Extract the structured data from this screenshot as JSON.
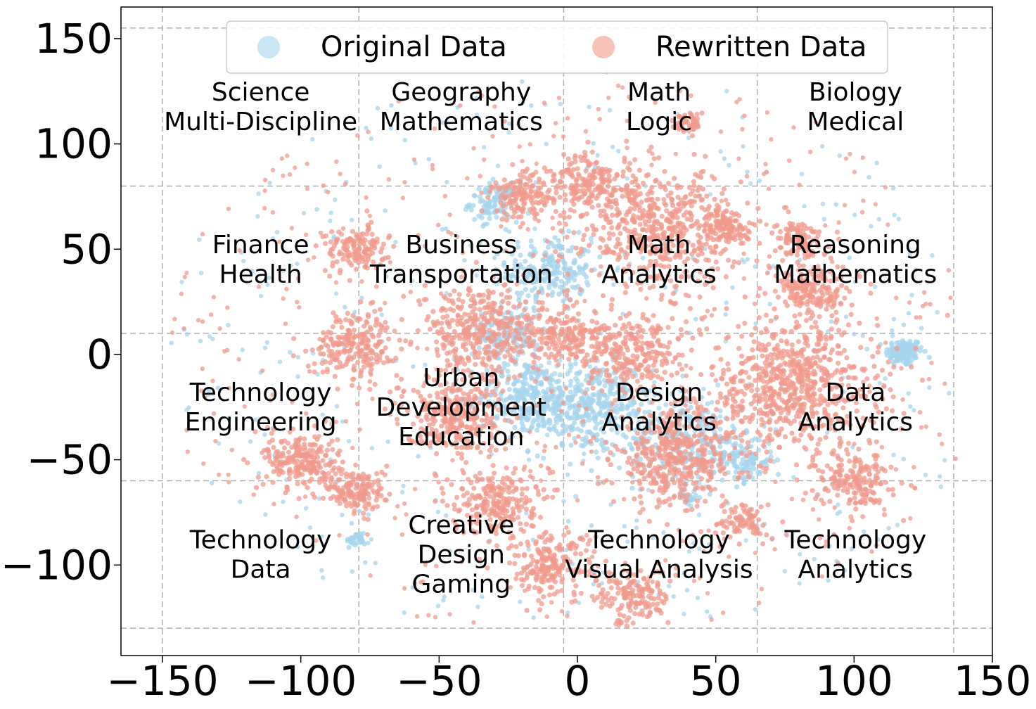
{
  "chart_data": {
    "type": "scatter",
    "title": "",
    "xlabel": "",
    "ylabel": "",
    "xlim": [
      -165,
      150
    ],
    "ylim": [
      -143,
      165
    ],
    "x_ticks": [
      "−150",
      "−100",
      "−50",
      "0",
      "50",
      "100",
      "150"
    ],
    "x_tick_values": [
      -150,
      -100,
      -50,
      0,
      50,
      100,
      150
    ],
    "y_ticks": [
      "150",
      "100",
      "50",
      "0",
      "−50",
      "−100"
    ],
    "y_tick_values": [
      150,
      100,
      50,
      0,
      -50,
      -100
    ],
    "grid": "dashed region grid",
    "grid_x": [
      -150,
      -79,
      -5,
      65,
      136
    ],
    "grid_y": [
      155,
      80,
      10,
      -60,
      -130
    ],
    "legend_placement": "top-center",
    "series": [
      {
        "name": "Original Data",
        "color": "#a6d4ec",
        "clusters": [
          {
            "cx": 118,
            "cy": 1,
            "r": 6,
            "n": 140
          },
          {
            "cx": -10,
            "cy": 40,
            "r": 14,
            "n": 220
          },
          {
            "cx": -30,
            "cy": 72,
            "r": 8,
            "n": 110
          },
          {
            "cx": 5,
            "cy": -25,
            "r": 20,
            "n": 380
          },
          {
            "cx": -18,
            "cy": -20,
            "r": 16,
            "n": 260
          },
          {
            "cx": 40,
            "cy": -40,
            "r": 18,
            "n": 220
          },
          {
            "cx": 60,
            "cy": -50,
            "r": 10,
            "n": 120
          },
          {
            "cx": -25,
            "cy": 10,
            "r": 12,
            "n": 150
          },
          {
            "cx": -80,
            "cy": -88,
            "r": 3,
            "n": 30
          },
          {
            "cx": 40,
            "cy": -68,
            "r": 3,
            "n": 30
          }
        ],
        "scatter": {
          "xmin": -150,
          "xmax": 135,
          "ymin": -125,
          "ymax": 135,
          "n": 520
        }
      },
      {
        "name": "Rewritten Data",
        "color": "#f09a8c",
        "clusters": [
          {
            "cx": 78,
            "cy": -15,
            "r": 28,
            "n": 700
          },
          {
            "cx": 35,
            "cy": -50,
            "r": 20,
            "n": 420
          },
          {
            "cx": 30,
            "cy": 60,
            "r": 25,
            "n": 520
          },
          {
            "cx": 5,
            "cy": 80,
            "r": 14,
            "n": 200
          },
          {
            "cx": -20,
            "cy": 75,
            "r": 10,
            "n": 140
          },
          {
            "cx": -35,
            "cy": 10,
            "r": 20,
            "n": 380
          },
          {
            "cx": -80,
            "cy": 5,
            "r": 14,
            "n": 220
          },
          {
            "cx": -80,
            "cy": 50,
            "r": 10,
            "n": 140
          },
          {
            "cx": -100,
            "cy": -50,
            "r": 12,
            "n": 220
          },
          {
            "cx": -80,
            "cy": -65,
            "r": 10,
            "n": 160
          },
          {
            "cx": -30,
            "cy": -70,
            "r": 14,
            "n": 230
          },
          {
            "cx": -45,
            "cy": -30,
            "r": 16,
            "n": 280
          },
          {
            "cx": -10,
            "cy": -100,
            "r": 14,
            "n": 200
          },
          {
            "cx": 20,
            "cy": -115,
            "r": 12,
            "n": 160
          },
          {
            "cx": 40,
            "cy": 110,
            "r": 5,
            "n": 50
          },
          {
            "cx": 55,
            "cy": 60,
            "r": 8,
            "n": 110
          },
          {
            "cx": 85,
            "cy": 30,
            "r": 12,
            "n": 200
          },
          {
            "cx": 80,
            "cy": 55,
            "r": 8,
            "n": 110
          },
          {
            "cx": 100,
            "cy": -60,
            "r": 12,
            "n": 180
          },
          {
            "cx": 20,
            "cy": 0,
            "r": 16,
            "n": 260
          },
          {
            "cx": 60,
            "cy": -80,
            "r": 8,
            "n": 90
          },
          {
            "cx": -5,
            "cy": 10,
            "r": 12,
            "n": 180
          }
        ],
        "scatter": {
          "xmin": -148,
          "xmax": 137,
          "ymin": -128,
          "ymax": 128,
          "n": 650
        }
      }
    ],
    "region_labels": [
      {
        "x": -114.5,
        "y": 117.5,
        "lines": [
          "Science",
          "Multi-Discipline"
        ]
      },
      {
        "x": -42,
        "y": 117.5,
        "lines": [
          "Geography",
          "Mathematics"
        ]
      },
      {
        "x": 29.5,
        "y": 117.5,
        "lines": [
          "Math",
          "Logic"
        ]
      },
      {
        "x": 100.5,
        "y": 117.5,
        "lines": [
          "Biology",
          "Medical"
        ]
      },
      {
        "x": -114.5,
        "y": 45,
        "lines": [
          "Finance",
          "Health"
        ]
      },
      {
        "x": -42,
        "y": 45,
        "lines": [
          "Business",
          "Transportation"
        ]
      },
      {
        "x": 29.5,
        "y": 45,
        "lines": [
          "Math",
          "Analytics"
        ]
      },
      {
        "x": 100.5,
        "y": 45,
        "lines": [
          "Reasoning",
          "Mathematics"
        ]
      },
      {
        "x": -114.5,
        "y": -25,
        "lines": [
          "Technology",
          "Engineering"
        ]
      },
      {
        "x": -42,
        "y": -25,
        "lines": [
          "Urban",
          "Development",
          "Education"
        ]
      },
      {
        "x": 29.5,
        "y": -25,
        "lines": [
          "Design",
          "Analytics"
        ]
      },
      {
        "x": 100.5,
        "y": -25,
        "lines": [
          "Data",
          "Analytics"
        ]
      },
      {
        "x": -114.5,
        "y": -95,
        "lines": [
          "Technology",
          "Data"
        ]
      },
      {
        "x": -42,
        "y": -95,
        "lines": [
          "Creative",
          "Design",
          "Gaming"
        ]
      },
      {
        "x": 29.5,
        "y": -95,
        "lines": [
          "Technology",
          "Visual Analysis"
        ]
      },
      {
        "x": 100.5,
        "y": -95,
        "lines": [
          "Technology",
          "Analytics"
        ]
      }
    ]
  }
}
